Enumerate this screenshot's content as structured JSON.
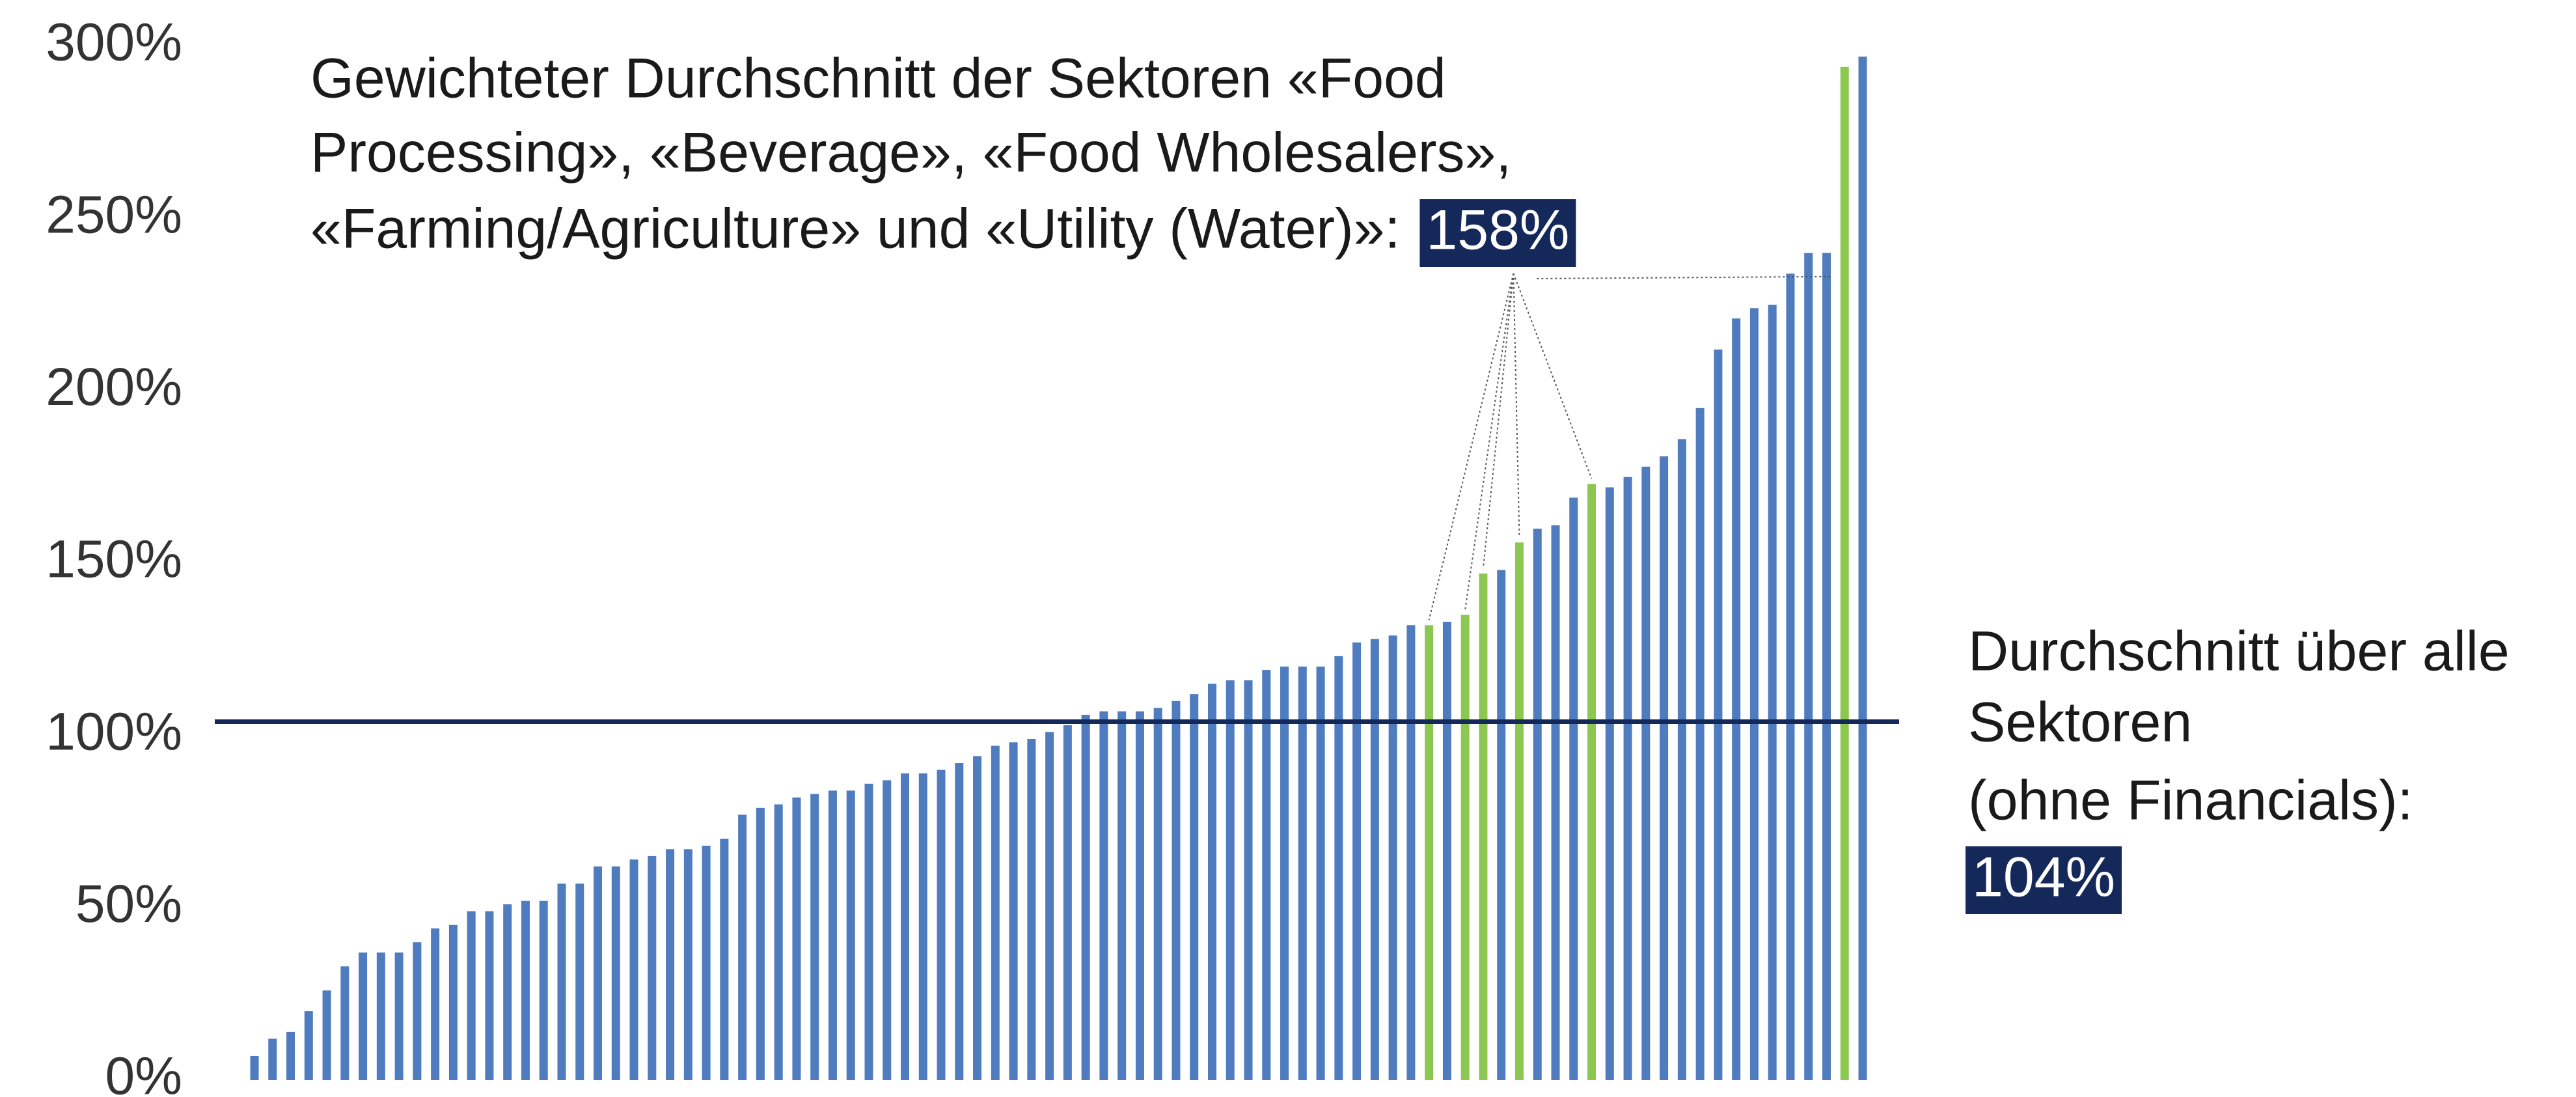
{
  "chart_data": {
    "type": "bar",
    "categories": [
      null,
      null,
      null,
      null,
      null,
      null,
      null,
      null,
      null,
      null,
      null,
      null,
      null,
      null,
      null,
      null,
      null,
      null,
      null,
      null,
      null,
      null,
      null,
      null,
      null,
      null,
      null,
      null,
      null,
      null,
      null,
      null,
      null,
      null,
      null,
      null,
      null,
      null,
      null,
      null,
      null,
      null,
      null,
      null,
      null,
      null,
      null,
      null,
      null,
      null,
      null,
      null,
      null,
      null,
      null,
      null,
      null,
      null,
      null,
      null,
      null,
      null,
      null,
      null,
      null,
      null,
      null,
      null,
      null,
      null,
      null,
      null,
      null,
      null,
      null,
      null,
      null,
      null,
      null,
      null,
      null,
      null,
      null,
      null,
      null,
      null,
      null,
      null,
      null,
      null
    ],
    "values": [
      7,
      12,
      14,
      20,
      26,
      33,
      37,
      37,
      37,
      40,
      44,
      45,
      49,
      49,
      51,
      52,
      52,
      57,
      57,
      62,
      62,
      64,
      65,
      67,
      67,
      68,
      70,
      77,
      79,
      80,
      82,
      83,
      84,
      84,
      86,
      87,
      89,
      89,
      90,
      92,
      94,
      97,
      98,
      99,
      101,
      103,
      106,
      107,
      107,
      107,
      108,
      110,
      112,
      115,
      116,
      116,
      119,
      120,
      120,
      120,
      123,
      127,
      128,
      129,
      132,
      132,
      133,
      135,
      147,
      148,
      156,
      160,
      161,
      169,
      173,
      172,
      175,
      178,
      181,
      186,
      195,
      212,
      221,
      224,
      225,
      234,
      240,
      240,
      294,
      297
    ],
    "colors": [
      "#4f7bbf",
      "#4f7bbf",
      "#4f7bbf",
      "#4f7bbf",
      "#4f7bbf",
      "#4f7bbf",
      "#4f7bbf",
      "#4f7bbf",
      "#4f7bbf",
      "#4f7bbf",
      "#4f7bbf",
      "#4f7bbf",
      "#4f7bbf",
      "#4f7bbf",
      "#4f7bbf",
      "#4f7bbf",
      "#4f7bbf",
      "#4f7bbf",
      "#4f7bbf",
      "#4f7bbf",
      "#4f7bbf",
      "#4f7bbf",
      "#4f7bbf",
      "#4f7bbf",
      "#4f7bbf",
      "#4f7bbf",
      "#4f7bbf",
      "#4f7bbf",
      "#4f7bbf",
      "#4f7bbf",
      "#4f7bbf",
      "#4f7bbf",
      "#4f7bbf",
      "#4f7bbf",
      "#4f7bbf",
      "#4f7bbf",
      "#4f7bbf",
      "#4f7bbf",
      "#4f7bbf",
      "#4f7bbf",
      "#4f7bbf",
      "#4f7bbf",
      "#4f7bbf",
      "#4f7bbf",
      "#4f7bbf",
      "#4f7bbf",
      "#4f7bbf",
      "#4f7bbf",
      "#4f7bbf",
      "#4f7bbf",
      "#4f7bbf",
      "#4f7bbf",
      "#4f7bbf",
      "#4f7bbf",
      "#4f7bbf",
      "#4f7bbf",
      "#4f7bbf",
      "#4f7bbf",
      "#4f7bbf",
      "#4f7bbf",
      "#4f7bbf",
      "#4f7bbf",
      "#4f7bbf",
      "#4f7bbf",
      "#4f7bbf",
      "#8cc751",
      "#4f7bbf",
      "#8cc751",
      "#8cc751",
      "#4f7bbf",
      "#8cc751",
      "#4f7bbf",
      "#4f7bbf",
      "#4f7bbf",
      "#8cc751",
      "#4f7bbf",
      "#4f7bbf",
      "#4f7bbf",
      "#4f7bbf",
      "#4f7bbf",
      "#4f7bbf",
      "#4f7bbf",
      "#4f7bbf",
      "#4f7bbf",
      "#4f7bbf",
      "#4f7bbf",
      "#4f7bbf",
      "#4f7bbf",
      "#8cc751",
      "#4f7bbf"
    ],
    "ylim": [
      0,
      300
    ],
    "yticks": [
      {
        "value": 0,
        "label": "0%"
      },
      {
        "value": 50,
        "label": "50%"
      },
      {
        "value": 100,
        "label": "100%"
      },
      {
        "value": 150,
        "label": "150%"
      },
      {
        "value": 200,
        "label": "200%"
      },
      {
        "value": 250,
        "label": "250%"
      },
      {
        "value": 300,
        "label": "300%"
      }
    ],
    "annotation": {
      "lines": [
        "Gewichteter Durchschnitt der Sektoren «Food",
        "Processing», «Beverage», «Food Wholesalers»,",
        "«Farming/Agriculture» und «Utility (Water)»:"
      ],
      "highlight": "158%"
    },
    "reference_line": {
      "value": 104,
      "color": "#14285a",
      "lines": [
        "Durchschnitt über alle",
        "Sektoren",
        "(ohne Financials):"
      ],
      "highlight": "104%"
    }
  }
}
